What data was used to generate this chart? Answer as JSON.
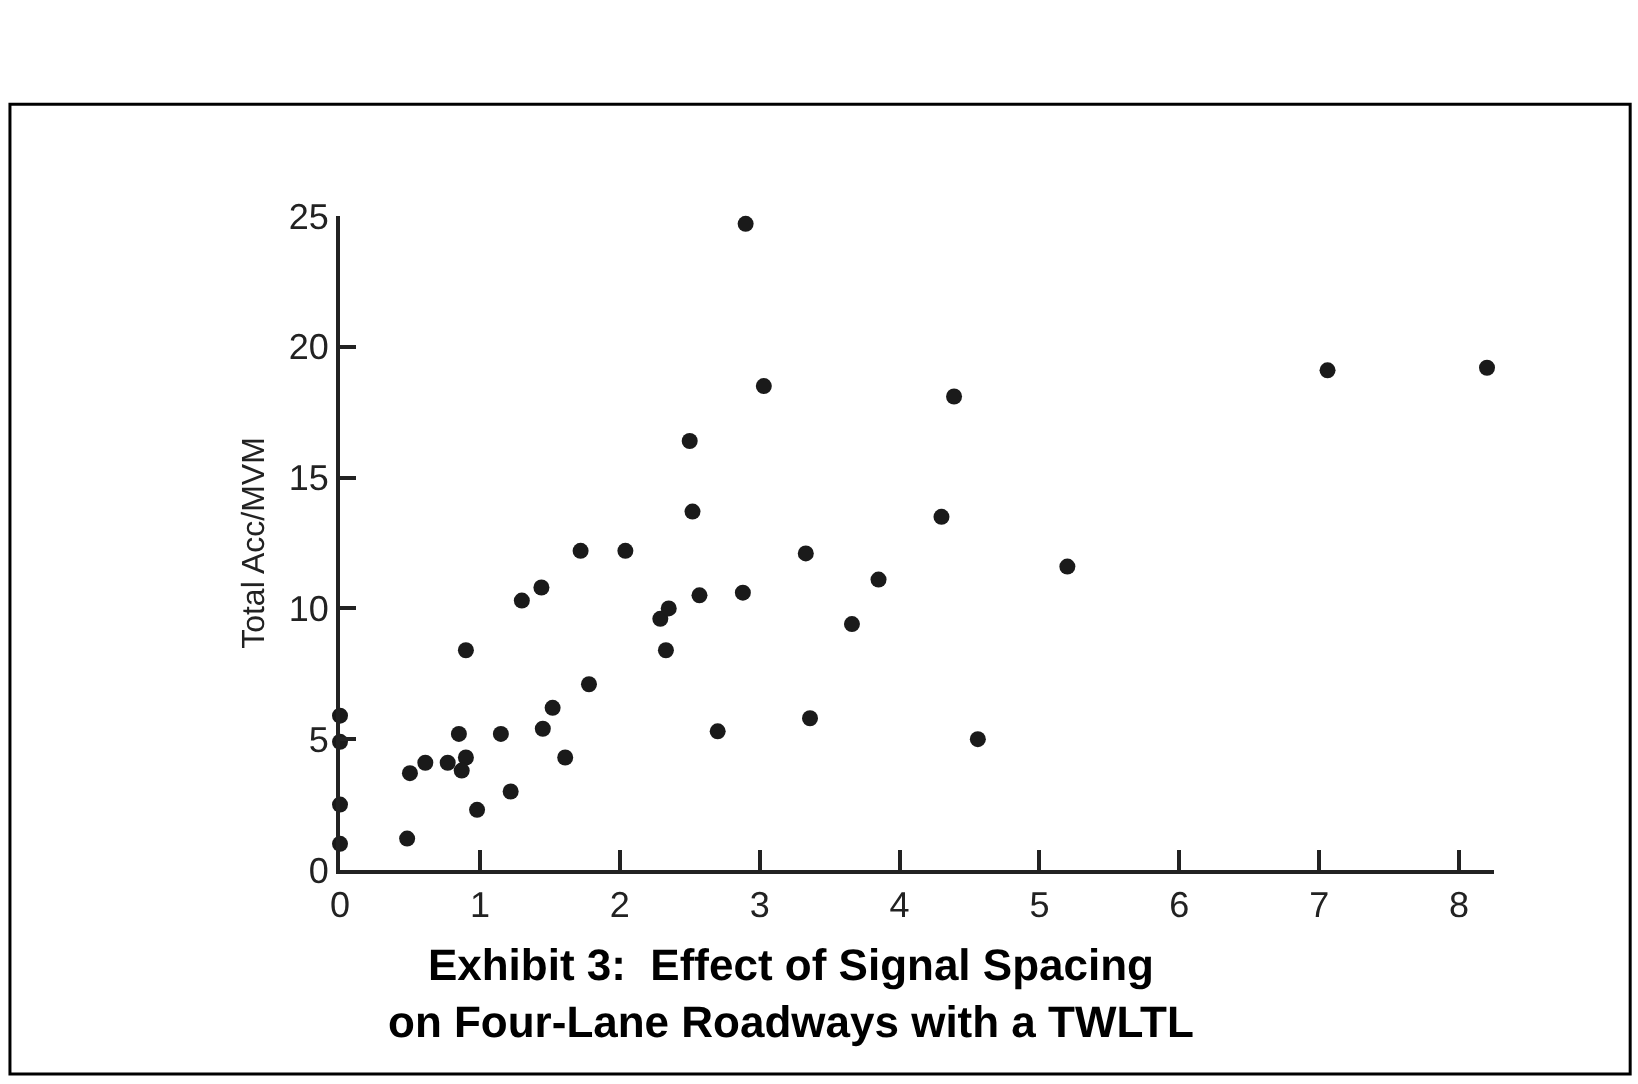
{
  "chart_data": {
    "type": "scatter",
    "title": "Exhibit 3:  Effect of Signal Spacing\non Four-Lane Roadways with a TWLTL",
    "ylabel": "Total Acc/MVM",
    "x": [
      0,
      0,
      0,
      0,
      0.48,
      0.5,
      0.61,
      0.77,
      0.85,
      0.9,
      0.87,
      0.9,
      0.98,
      1.15,
      1.22,
      1.3,
      1.44,
      1.45,
      1.52,
      1.61,
      1.72,
      1.78,
      2.04,
      2.29,
      2.35,
      2.33,
      2.5,
      2.52,
      2.57,
      2.7,
      2.88,
      2.9,
      3.03,
      3.33,
      3.36,
      3.66,
      3.85,
      4.3,
      4.39,
      4.56,
      5.2,
      7.06,
      8.2
    ],
    "values": [
      5.9,
      4.9,
      2.5,
      1.0,
      1.2,
      3.7,
      4.1,
      4.1,
      5.2,
      4.3,
      3.8,
      8.4,
      2.3,
      5.2,
      3.0,
      10.3,
      10.8,
      5.4,
      6.2,
      4.3,
      12.2,
      7.1,
      12.2,
      9.6,
      10.0,
      8.4,
      16.4,
      13.7,
      10.5,
      5.3,
      10.6,
      24.7,
      18.5,
      12.1,
      5.8,
      9.4,
      11.1,
      13.5,
      18.1,
      5.0,
      11.6,
      19.1,
      19.2
    ],
    "color": "#1a1a1a",
    "marker": "circle",
    "xlim": [
      0,
      8.25
    ],
    "xticks": [
      0,
      1,
      2,
      3,
      4,
      5,
      6,
      7,
      8
    ],
    "ylim": [
      0,
      25
    ],
    "yticks": [
      0,
      5,
      10,
      15,
      20,
      25
    ]
  }
}
